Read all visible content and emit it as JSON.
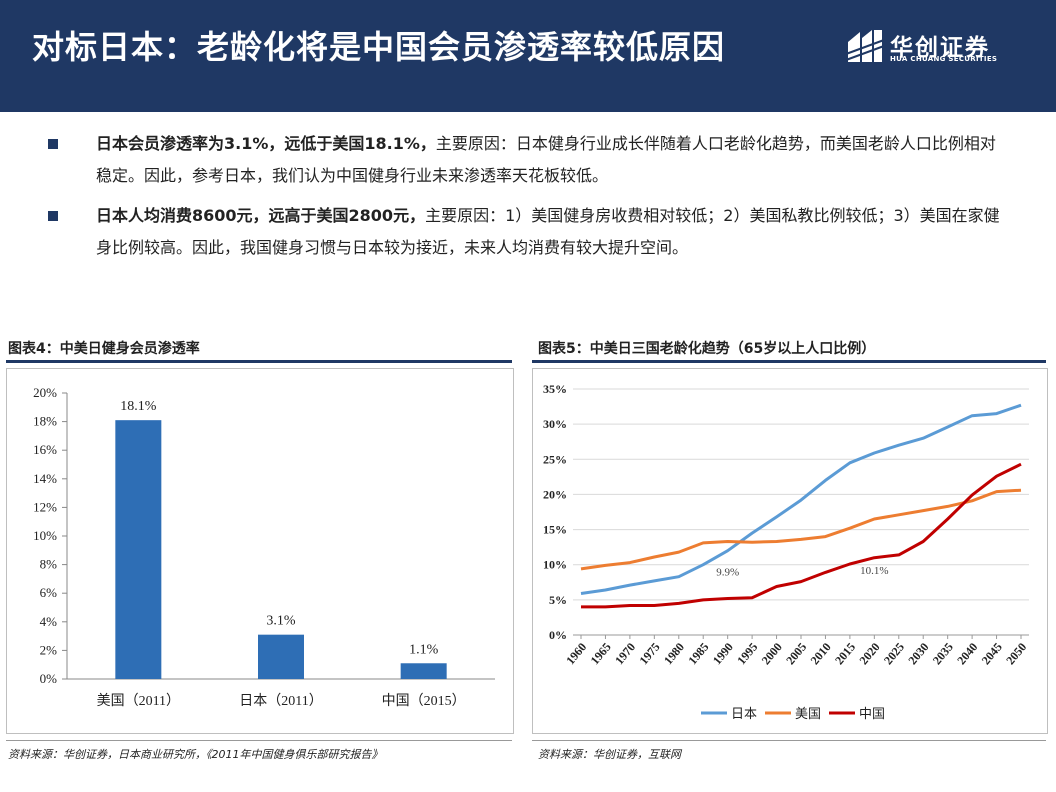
{
  "header": {
    "title": "对标日本：老龄化将是中国会员渗透率较低原因",
    "logo_name": "华创证券",
    "logo_sub": "HUA CHUANG SECURITIES",
    "background_color": "#1f3864"
  },
  "bullets": [
    {
      "bold": "日本会员渗透率为3.1%，远低于美国18.1%，",
      "text": "主要原因：日本健身行业成长伴随着人口老龄化趋势，而美国老龄人口比例相对稳定。因此，参考日本，我们认为中国健身行业未来渗透率天花板较低。"
    },
    {
      "bold": "日本人均消费8600元，远高于美国2800元，",
      "text": "主要原因：1）美国健身房收费相对较低；2）美国私教比例较低；3）美国在家健身比例较高。因此，我国健身习惯与日本较为接近，未来人均消费有较大提升空间。"
    }
  ],
  "chart_left": {
    "caption": "图表4：中美日健身会员渗透率",
    "source": "资料来源：华创证券，日本商业研究所，《2011年中国健身俱乐部研究报告》"
  },
  "chart_right": {
    "caption": "图表5：中美日三国老龄化趋势（65岁以上人口比例）",
    "source": "资料来源：华创证券，互联网"
  },
  "chart_data": [
    {
      "type": "bar",
      "title": "中美日健身会员渗透率",
      "categories": [
        "美国（2011）",
        "日本（2011）",
        "中国（2015）"
      ],
      "values": [
        18.1,
        3.1,
        1.1
      ],
      "data_labels": [
        "18.1%",
        "3.1%",
        "1.1%"
      ],
      "yticks": [
        "0%",
        "2%",
        "4%",
        "6%",
        "8%",
        "10%",
        "12%",
        "14%",
        "16%",
        "18%",
        "20%"
      ],
      "ylim": [
        0,
        20
      ],
      "color": "#2e6eb5"
    },
    {
      "type": "line",
      "title": "中美日三国老龄化趋势（65岁以上人口比例）",
      "categories": [
        "1960",
        "1965",
        "1970",
        "1975",
        "1980",
        "1985",
        "1990",
        "1995",
        "2000",
        "2005",
        "2010",
        "2015",
        "2020",
        "2025",
        "2030",
        "2035",
        "2040",
        "2045",
        "2050"
      ],
      "yticks": [
        "0%",
        "5%",
        "10%",
        "15%",
        "20%",
        "25%",
        "30%",
        "35%"
      ],
      "ylim": [
        0,
        35
      ],
      "grid": true,
      "legend_position": "bottom",
      "series": [
        {
          "name": "日本",
          "color": "#5b9bd5",
          "values": [
            5.9,
            6.4,
            7.1,
            7.7,
            8.3,
            10.0,
            12.0,
            14.5,
            16.8,
            19.2,
            22.0,
            24.5,
            25.9,
            27.0,
            28.0,
            29.6,
            31.2,
            31.5,
            32.7
          ]
        },
        {
          "name": "美国",
          "color": "#ed7d31",
          "values": [
            9.4,
            9.9,
            10.3,
            11.1,
            11.8,
            13.1,
            13.3,
            13.2,
            13.3,
            13.6,
            14.0,
            15.2,
            16.5,
            17.1,
            17.7,
            18.3,
            19.1,
            20.4,
            20.6
          ]
        },
        {
          "name": "中国",
          "color": "#c00000",
          "values": [
            4.0,
            4.0,
            4.2,
            4.2,
            4.5,
            5.0,
            5.2,
            5.3,
            6.9,
            7.6,
            8.9,
            10.1,
            11.0,
            11.4,
            13.3,
            16.5,
            19.9,
            22.6,
            24.3
          ]
        }
      ],
      "annotations": [
        {
          "text": "9.9%",
          "category": "1990",
          "value": 9.9
        },
        {
          "text": "10.1%",
          "category": "2020",
          "value": 10.1
        }
      ]
    }
  ]
}
